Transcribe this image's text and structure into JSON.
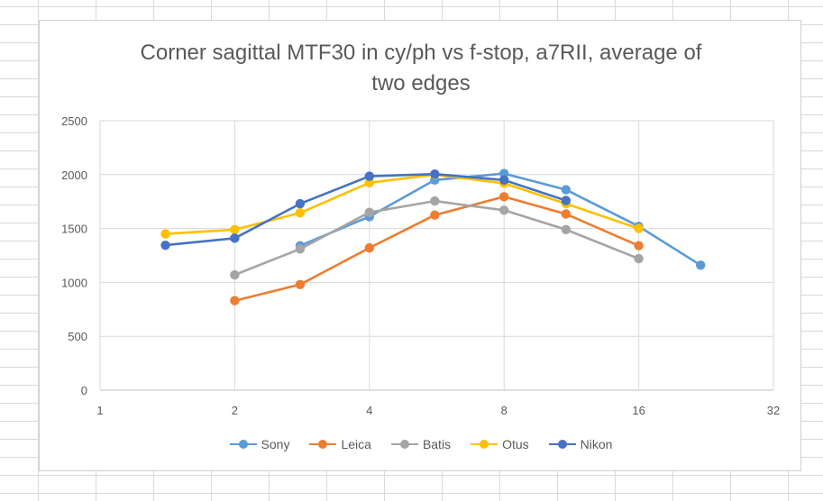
{
  "chart_data": {
    "type": "line",
    "title": "Corner sagittal MTF30 in cy/ph vs f-stop, a7RII, average of two edges",
    "title_lines": [
      "Corner sagittal MTF30 in cy/ph vs f-stop, a7RII, average of",
      "two edges"
    ],
    "xlabel": "",
    "ylabel": "",
    "x_scale": "log2",
    "xlim": [
      1,
      32
    ],
    "ylim": [
      0,
      2500
    ],
    "x_ticks": [
      1,
      2,
      4,
      8,
      16,
      32
    ],
    "y_ticks": [
      0,
      500,
      1000,
      1500,
      2000,
      2500
    ],
    "grid": true,
    "legend_position": "bottom",
    "series": [
      {
        "name": "Sony",
        "color": "#5b9bd5",
        "x": [
          2.8,
          4,
          5.6,
          8,
          11,
          16,
          22
        ],
        "y": [
          1340,
          1610,
          1950,
          2010,
          1860,
          1520,
          1160
        ]
      },
      {
        "name": "Leica",
        "color": "#ed7d31",
        "x": [
          2,
          2.8,
          4,
          5.6,
          8,
          11,
          16
        ],
        "y": [
          830,
          980,
          1320,
          1625,
          1795,
          1635,
          1340
        ]
      },
      {
        "name": "Batis",
        "color": "#a5a5a5",
        "x": [
          2,
          2.8,
          4,
          5.6,
          8,
          11,
          16
        ],
        "y": [
          1070,
          1310,
          1650,
          1755,
          1670,
          1490,
          1220
        ]
      },
      {
        "name": "Otus",
        "color": "#ffc000",
        "x": [
          1.4,
          2,
          2.8,
          4,
          5.6,
          8,
          11,
          16
        ],
        "y": [
          1450,
          1490,
          1645,
          1925,
          2000,
          1920,
          1730,
          1500
        ]
      },
      {
        "name": "Nikon",
        "color": "#4472c4",
        "x": [
          1.4,
          2,
          2.8,
          4,
          5.6,
          8,
          11
        ],
        "y": [
          1345,
          1410,
          1730,
          1985,
          2005,
          1950,
          1760
        ]
      }
    ]
  }
}
